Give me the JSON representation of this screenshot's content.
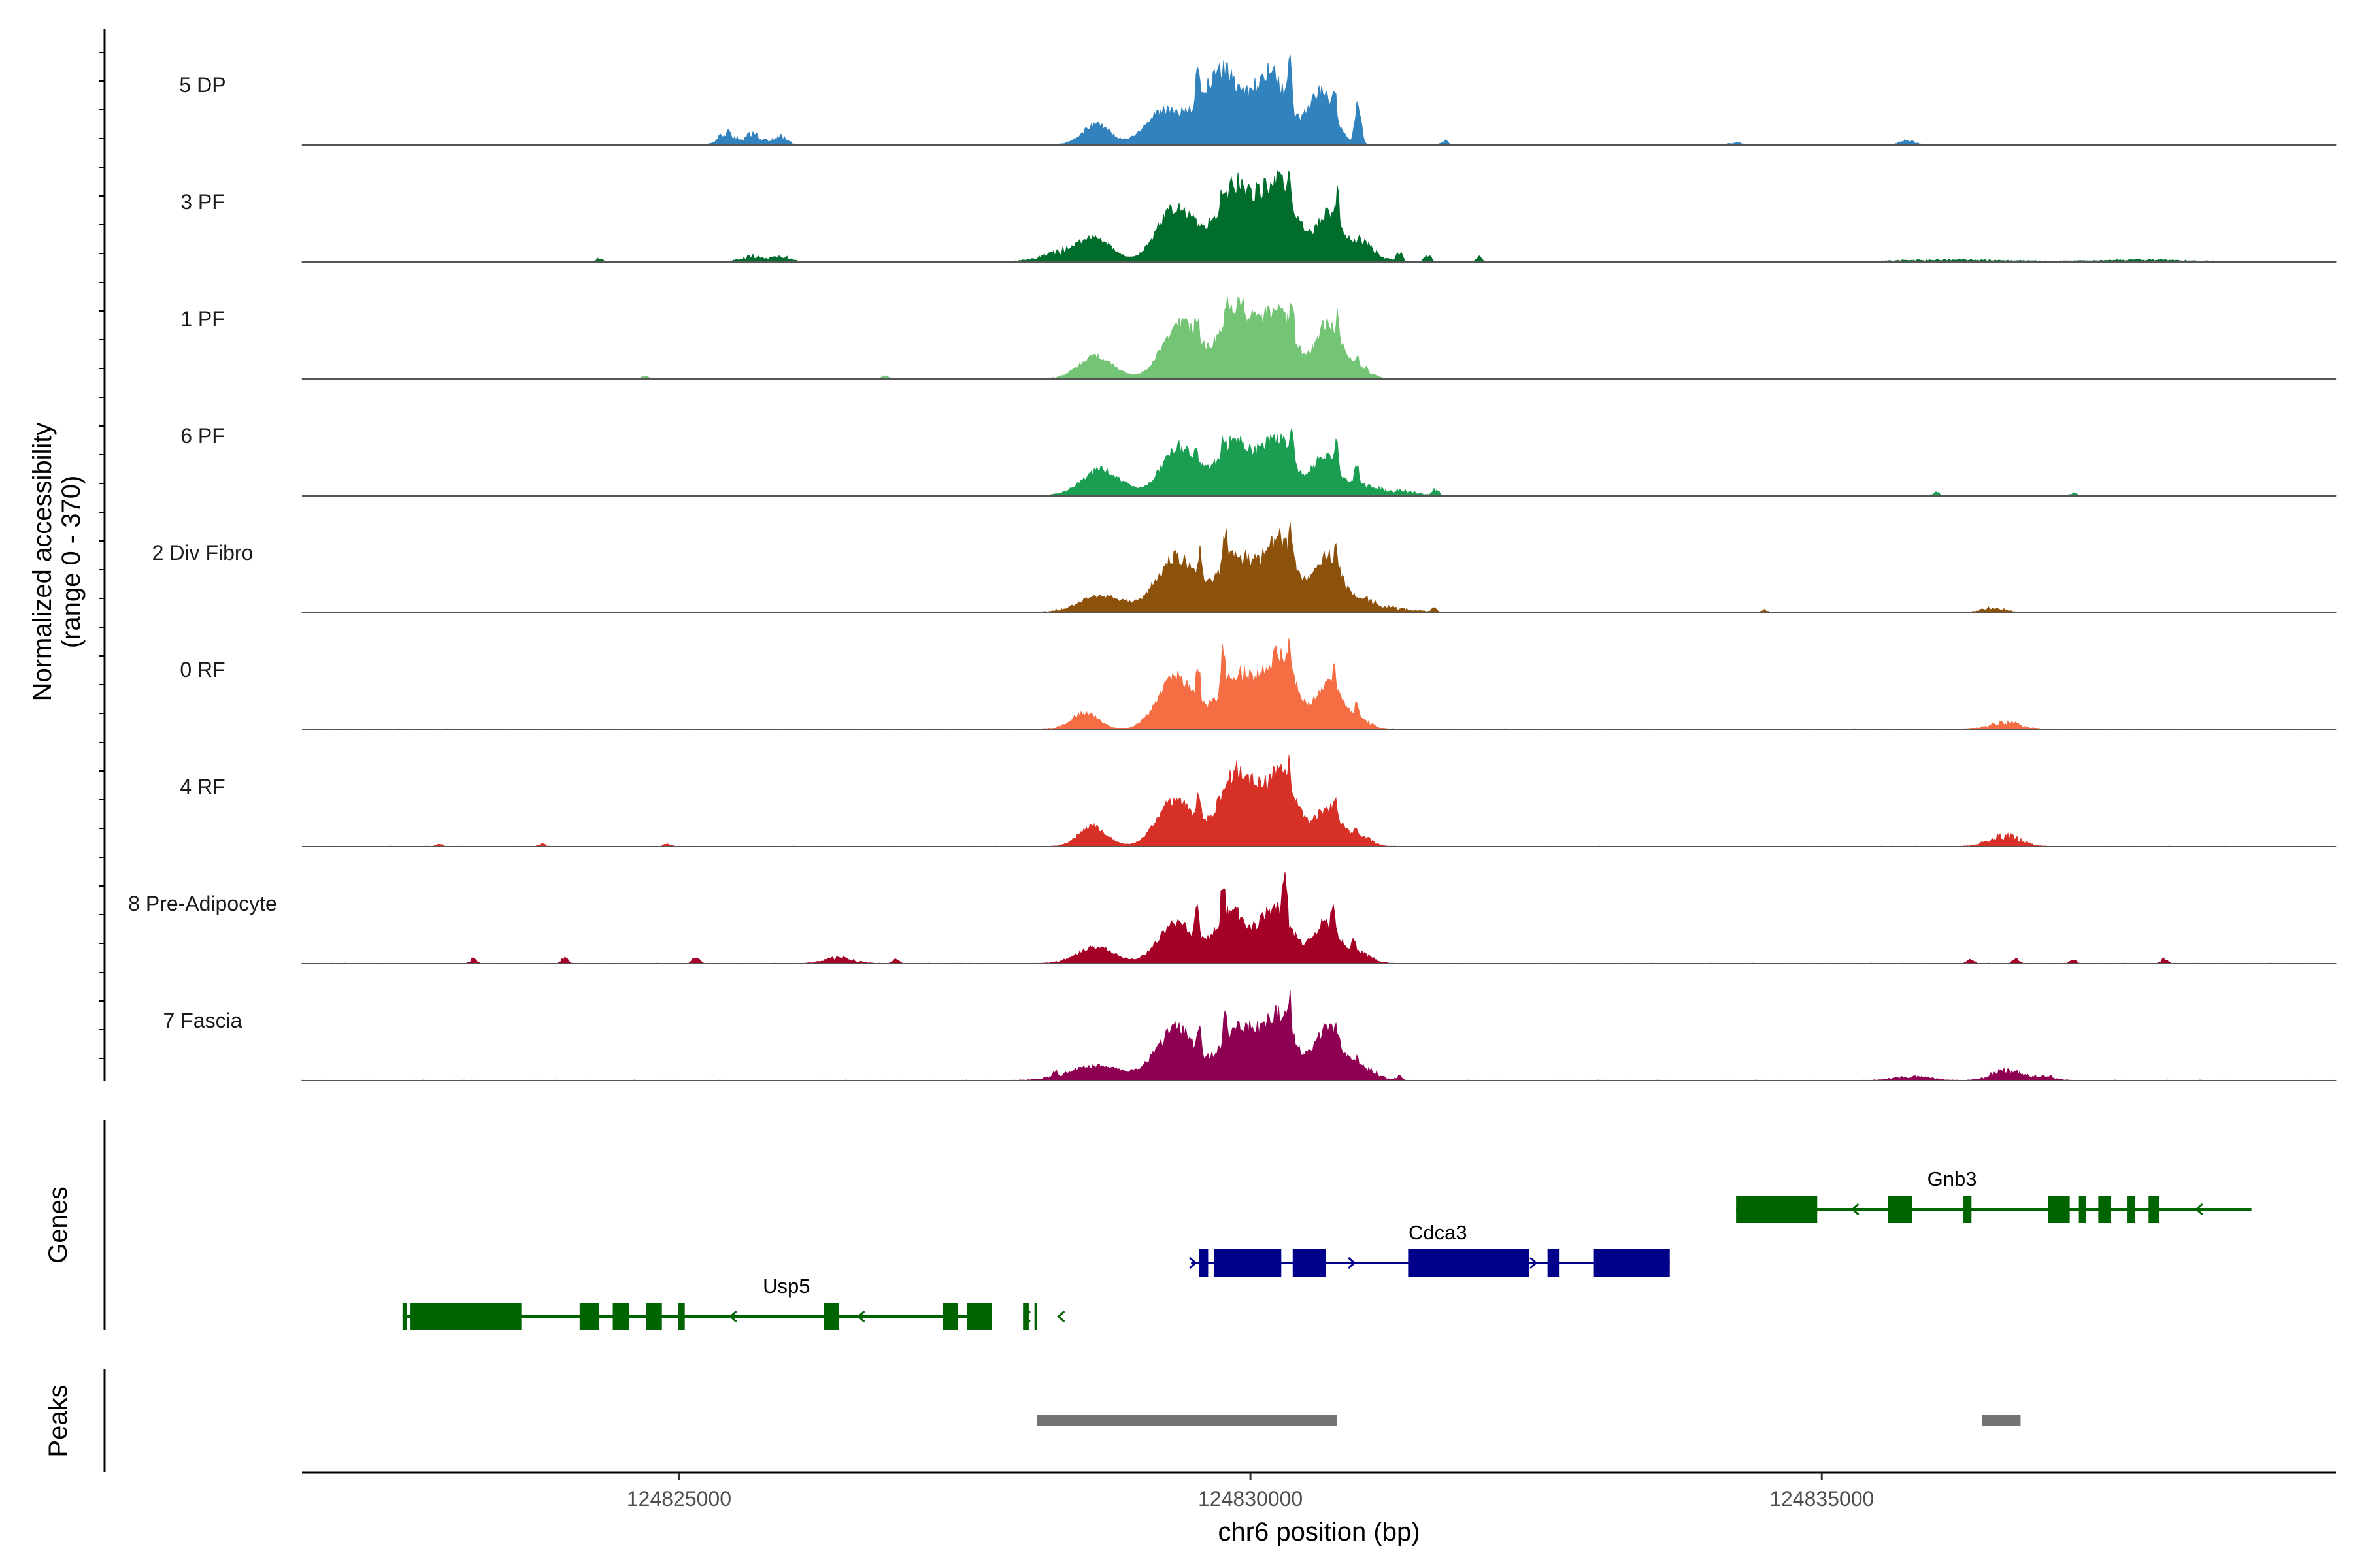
{
  "chart_data": {
    "type": "area",
    "title": "",
    "xlabel": "chr6 position (bp)",
    "ylabel_line1": "Normalized accessibility",
    "ylabel_line2": "(range 0 - 370)",
    "ylim": [
      0,
      370
    ],
    "xlim": [
      124821700,
      124839500
    ],
    "x_ticks": [
      124825000,
      124830000,
      124835000
    ],
    "x_tick_labels": [
      "124825000",
      "124830000",
      "124835000"
    ],
    "tracks": [
      {
        "name": "5 DP",
        "color": "#3182bd",
        "peaks": [
          [
            124829260,
            0.37,
            170
          ],
          [
            124829750,
            0.8,
            170
          ],
          [
            124830180,
            0.75,
            140
          ],
          [
            124830620,
            0.57,
            115
          ],
          [
            124828650,
            0.22,
            120
          ],
          [
            124825420,
            0.13,
            70
          ],
          [
            124825650,
            0.12,
            70
          ],
          [
            124825880,
            0.09,
            60
          ],
          [
            124835750,
            0.05,
            60
          ],
          [
            124834250,
            0.02,
            60
          ]
        ],
        "spikes": [
          [
            124829720,
            0.95
          ],
          [
            124829540,
            0.82
          ],
          [
            124830340,
            0.92
          ],
          [
            124830730,
            0.63
          ],
          [
            124830940,
            0.45
          ],
          [
            124831700,
            0.05
          ]
        ]
      },
      {
        "name": "3 PF",
        "color": "#006d2c",
        "peaks": [
          [
            124829350,
            0.6,
            160
          ],
          [
            124829880,
            0.82,
            170
          ],
          [
            124830260,
            0.82,
            140
          ],
          [
            124830680,
            0.5,
            110
          ],
          [
            124828650,
            0.22,
            140
          ],
          [
            124828400,
            0.1,
            200
          ],
          [
            124830960,
            0.18,
            130
          ],
          [
            124825650,
            0.06,
            100
          ],
          [
            124825900,
            0.05,
            80
          ],
          [
            124836200,
            0.02,
            500
          ],
          [
            124837800,
            0.02,
            400
          ]
        ],
        "spikes": [
          [
            124829760,
            0.85
          ],
          [
            124830340,
            0.95
          ],
          [
            124830760,
            0.74
          ],
          [
            124830950,
            0.3
          ],
          [
            124831300,
            0.1
          ],
          [
            124831550,
            0.08
          ],
          [
            124832000,
            0.05
          ],
          [
            124824300,
            0.04
          ]
        ]
      },
      {
        "name": "1 PF",
        "color": "#74c476",
        "peaks": [
          [
            124829390,
            0.6,
            160
          ],
          [
            124829890,
            0.76,
            150
          ],
          [
            124830250,
            0.72,
            130
          ],
          [
            124830680,
            0.6,
            110
          ],
          [
            124828650,
            0.24,
            150
          ],
          [
            124830950,
            0.12,
            90
          ]
        ],
        "spikes": [
          [
            124829790,
            0.9
          ],
          [
            124829530,
            0.7
          ],
          [
            124830360,
            0.88
          ],
          [
            124830760,
            0.68
          ],
          [
            124830930,
            0.25
          ],
          [
            124824700,
            0.03
          ],
          [
            124826800,
            0.03
          ]
        ]
      },
      {
        "name": "6 PF",
        "color": "#1b9e52",
        "peaks": [
          [
            124829380,
            0.52,
            160
          ],
          [
            124829870,
            0.58,
            150
          ],
          [
            124830240,
            0.6,
            130
          ],
          [
            124830650,
            0.42,
            110
          ],
          [
            124828700,
            0.28,
            170
          ],
          [
            124830960,
            0.12,
            120
          ],
          [
            124831300,
            0.05,
            150
          ]
        ],
        "spikes": [
          [
            124829770,
            0.7
          ],
          [
            124829520,
            0.6
          ],
          [
            124830360,
            0.74
          ],
          [
            124830750,
            0.58
          ],
          [
            124830930,
            0.33
          ],
          [
            124831620,
            0.07
          ],
          [
            124836000,
            0.04
          ],
          [
            124837200,
            0.03
          ]
        ]
      },
      {
        "name": "2 Div Fibro",
        "color": "#8c510a",
        "peaks": [
          [
            124829350,
            0.6,
            170
          ],
          [
            124829870,
            0.62,
            150
          ],
          [
            124830260,
            0.8,
            140
          ],
          [
            124830680,
            0.6,
            110
          ],
          [
            124828700,
            0.18,
            200
          ],
          [
            124830960,
            0.12,
            130
          ],
          [
            124831250,
            0.04,
            200
          ],
          [
            124836500,
            0.05,
            100
          ]
        ],
        "spikes": [
          [
            124829780,
            0.85
          ],
          [
            124829560,
            0.65
          ],
          [
            124830350,
            0.98
          ],
          [
            124830740,
            0.7
          ],
          [
            124831600,
            0.05
          ],
          [
            124834500,
            0.03
          ]
        ]
      },
      {
        "name": "0 RF",
        "color": "#f46d43",
        "peaks": [
          [
            124829350,
            0.56,
            160
          ],
          [
            124829880,
            0.6,
            150
          ],
          [
            124830260,
            0.78,
            140
          ],
          [
            124830690,
            0.5,
            110
          ],
          [
            124828550,
            0.18,
            120
          ],
          [
            124836600,
            0.08,
            130
          ],
          [
            124830950,
            0.1,
            100
          ]
        ],
        "spikes": [
          [
            124829760,
            0.85
          ],
          [
            124829540,
            0.7
          ],
          [
            124830340,
            0.98
          ],
          [
            124830730,
            0.66
          ],
          [
            124830930,
            0.28
          ]
        ]
      },
      {
        "name": "4 RF",
        "color": "#d73027",
        "peaks": [
          [
            124829350,
            0.5,
            160
          ],
          [
            124829880,
            0.8,
            150
          ],
          [
            124830260,
            0.76,
            140
          ],
          [
            124830680,
            0.42,
            110
          ],
          [
            124828620,
            0.22,
            120
          ],
          [
            124836600,
            0.12,
            130
          ],
          [
            124830950,
            0.1,
            100
          ]
        ],
        "spikes": [
          [
            124829770,
            0.75
          ],
          [
            124829550,
            0.6
          ],
          [
            124830330,
            0.92
          ],
          [
            124830740,
            0.5
          ],
          [
            124830920,
            0.22
          ],
          [
            124822900,
            0.03
          ],
          [
            124823800,
            0.03
          ],
          [
            124824900,
            0.03
          ]
        ]
      },
      {
        "name": "8 Pre-Adipocyte",
        "color": "#a50026",
        "peaks": [
          [
            124829360,
            0.44,
            160
          ],
          [
            124829830,
            0.55,
            130
          ],
          [
            124830220,
            0.6,
            140
          ],
          [
            124830660,
            0.44,
            110
          ],
          [
            124828650,
            0.18,
            160
          ],
          [
            124830950,
            0.12,
            100
          ],
          [
            124826400,
            0.06,
            120
          ]
        ],
        "spikes": [
          [
            124829760,
            0.88
          ],
          [
            124829530,
            0.66
          ],
          [
            124830300,
            1.0
          ],
          [
            124830720,
            0.66
          ],
          [
            124830900,
            0.28
          ],
          [
            124831000,
            0.1
          ],
          [
            124825150,
            0.08
          ],
          [
            124824000,
            0.06
          ],
          [
            124823200,
            0.05
          ],
          [
            124826900,
            0.05
          ],
          [
            124836300,
            0.05
          ],
          [
            124836700,
            0.05
          ],
          [
            124837200,
            0.04
          ],
          [
            124838000,
            0.05
          ]
        ]
      },
      {
        "name": "7 Fascia",
        "color": "#8e0152",
        "peaks": [
          [
            124829350,
            0.56,
            170
          ],
          [
            124829890,
            0.56,
            150
          ],
          [
            124830250,
            0.7,
            140
          ],
          [
            124830680,
            0.56,
            110
          ],
          [
            124828650,
            0.16,
            230
          ],
          [
            124836600,
            0.1,
            120
          ],
          [
            124835800,
            0.04,
            150
          ],
          [
            124836900,
            0.04,
            120
          ],
          [
            124830960,
            0.15,
            120
          ]
        ],
        "spikes": [
          [
            124829780,
            0.78
          ],
          [
            124829550,
            0.6
          ],
          [
            124830340,
            0.9
          ],
          [
            124830750,
            0.6
          ],
          [
            124830930,
            0.25
          ],
          [
            124831300,
            0.05
          ],
          [
            124828300,
            0.12
          ],
          [
            124837000,
            0.05
          ]
        ]
      }
    ],
    "genes_panel_label": "Genes",
    "peaks_panel_label": "Peaks",
    "genes": [
      {
        "name": "Usp5",
        "strand": "-",
        "color": "#006400",
        "row": 3,
        "start": 124822580,
        "end": 124827740,
        "exons": [
          [
            124822580,
            124822620
          ],
          [
            124822650,
            124823620
          ],
          [
            124824130,
            124824300
          ],
          [
            124824420,
            124824560
          ],
          [
            124824710,
            124824850
          ],
          [
            124824990,
            124825050
          ],
          [
            124826270,
            124826400
          ],
          [
            124827310,
            124827440
          ],
          [
            124828110,
            124828130
          ],
          [
            124828010,
            124828060
          ],
          [
            124827520,
            124827740
          ]
        ],
        "arrows": [
          124822640,
          124825450,
          124826570,
          124827600,
          124828020,
          124828320
        ],
        "label_x": 124825940
      },
      {
        "name": "Cdca3",
        "strand": "+",
        "color": "#00008b",
        "row": 2,
        "start": 124829480,
        "end": 124833670,
        "exons": [
          [
            124829550,
            124829630
          ],
          [
            124829680,
            124830270
          ],
          [
            124830370,
            124830660
          ],
          [
            124831380,
            124832440
          ],
          [
            124832600,
            124832700
          ],
          [
            124833000,
            124833670
          ]
        ],
        "arrows": [
          124829520,
          124830910,
          124832500
        ],
        "label_x": 124831640
      },
      {
        "name": "Gnb3",
        "strand": "-",
        "color": "#006400",
        "row": 1,
        "start": 124834250,
        "end": 124838760,
        "exons": [
          [
            124834250,
            124834960
          ],
          [
            124835580,
            124835790
          ],
          [
            124836240,
            124836310
          ],
          [
            124836980,
            124837170
          ],
          [
            124837250,
            124837310
          ],
          [
            124837420,
            124837530
          ],
          [
            124837670,
            124837740
          ],
          [
            124837860,
            124837950
          ]
        ],
        "arrows": [
          124835270,
          124838280
        ],
        "label_x": 124836140
      }
    ],
    "peak_regions": [
      [
        124828130,
        124830760
      ],
      [
        124836400,
        124836740
      ]
    ],
    "peak_color": "#737373"
  }
}
